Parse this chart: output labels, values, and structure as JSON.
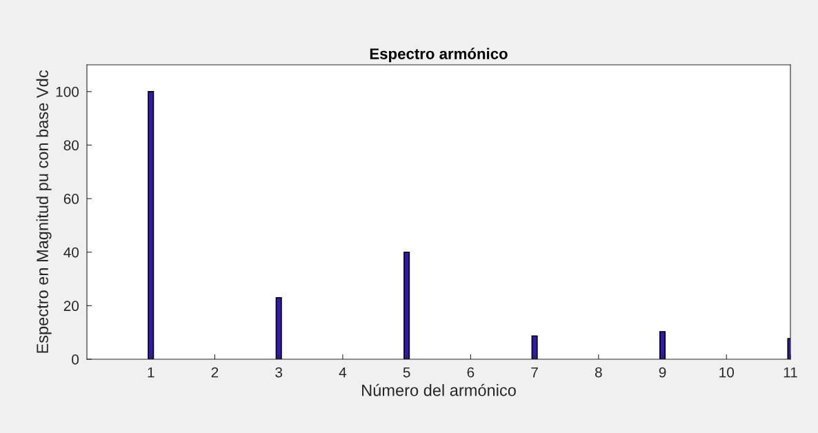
{
  "chart_data": {
    "type": "bar",
    "title": "Espectro armónico",
    "xlabel": "Número del armónico",
    "ylabel": "Espectro en Magnitud pu con base Vdc",
    "x": [
      1,
      3,
      5,
      7,
      9,
      11
    ],
    "series": [
      {
        "color": "#3319b0",
        "values": [
          100,
          23,
          40,
          8.7,
          10.3,
          7.7
        ]
      }
    ],
    "xlim": [
      0,
      11
    ],
    "xticks": [
      1,
      2,
      3,
      4,
      5,
      6,
      7,
      8,
      9,
      10,
      11
    ],
    "ylim": [
      0,
      110
    ],
    "yticks": [
      0,
      20,
      40,
      60,
      80,
      100
    ],
    "grid": false,
    "legend": false
  }
}
